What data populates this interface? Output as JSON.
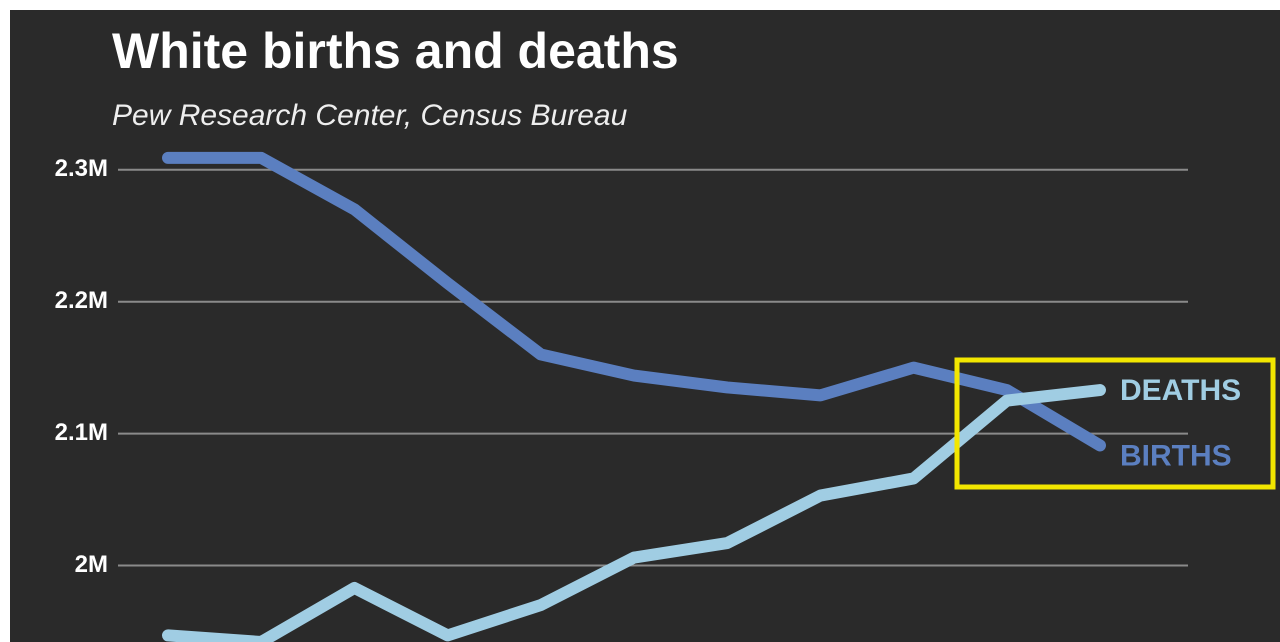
{
  "chart_data": {
    "type": "line",
    "title": "White births and deaths",
    "subtitle": "Pew Research Center, Census Bureau",
    "categories": [
      null,
      null,
      null,
      null,
      null,
      null,
      null,
      null,
      null,
      null,
      null
    ],
    "series": [
      {
        "name": "BIRTHS",
        "color": "#5b7fc0",
        "values": [
          2.309,
          2.309,
          2.27,
          2.214,
          2.16,
          2.144,
          2.135,
          2.129,
          2.15,
          2.133,
          2.091
        ]
      },
      {
        "name": "DEATHS",
        "color": "#a0cde3",
        "values": [
          1.947,
          1.942,
          1.983,
          1.947,
          1.97,
          2.006,
          2.017,
          2.053,
          2.066,
          2.125,
          2.133
        ]
      }
    ],
    "ylim": [
      1.942,
      2.315
    ],
    "yticks": [
      {
        "value": 2.0,
        "label": "2M"
      },
      {
        "value": 2.1,
        "label": "2.1M"
      },
      {
        "value": 2.2,
        "label": "2.2M"
      },
      {
        "value": 2.3,
        "label": "2.3M"
      }
    ],
    "grid": true
  }
}
